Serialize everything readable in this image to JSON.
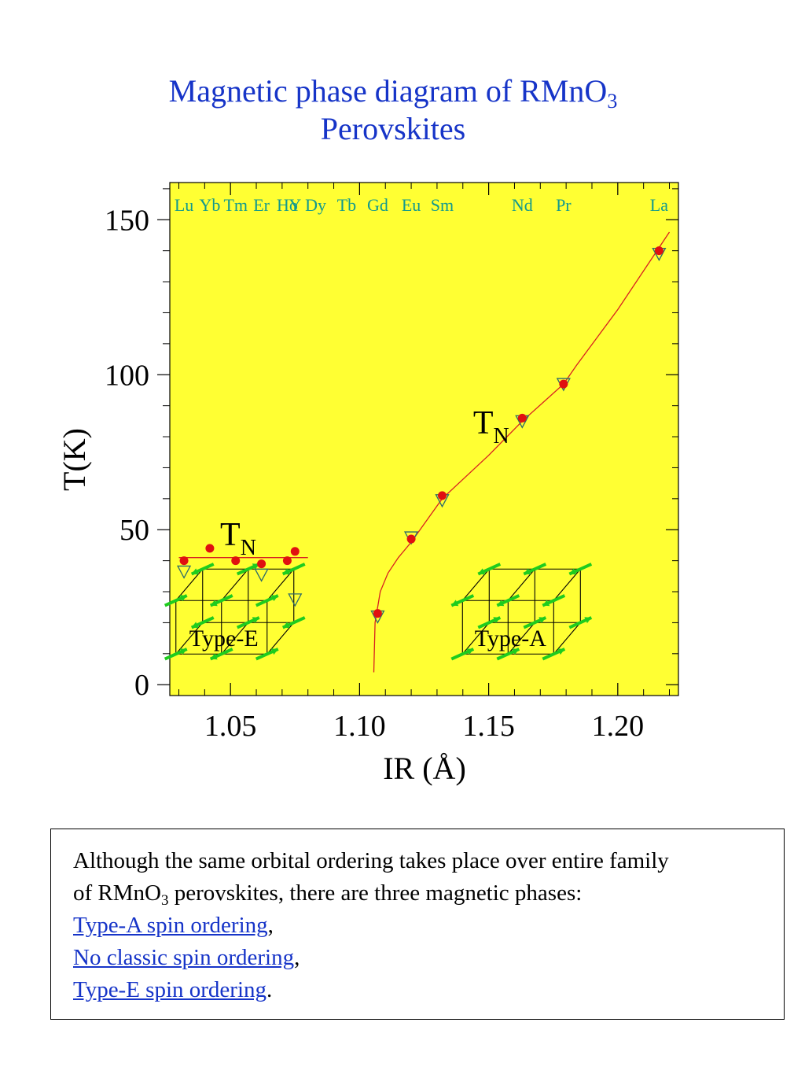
{
  "title": {
    "line1_main": "Magnetic phase diagram of RMnO",
    "line1_sub": "3",
    "line2": "Perovskites"
  },
  "colors": {
    "plot_bg": "#ffff33",
    "title": "#1634c8",
    "element_labels": "#11998e",
    "curve": "#d82020",
    "marker_fill": "#e01010",
    "triangle_stroke": "#2d6b6b",
    "spin_arrow": "#1ecc1e",
    "link": "#1634c8"
  },
  "chart_data": {
    "type": "scatter",
    "title": "Magnetic phase diagram of RMnO3 Perovskites",
    "xlabel": "IR (Å)",
    "ylabel": "T(K)",
    "xlim": [
      1.0265,
      1.2235
    ],
    "ylim": [
      -3.5,
      162
    ],
    "xticks": [
      1.05,
      1.1,
      1.15,
      1.2
    ],
    "xtick_labels": [
      "1.05",
      "1.10",
      "1.15",
      "1.20"
    ],
    "yticks": [
      0,
      50,
      100,
      150
    ],
    "ytick_labels": [
      "0",
      "50",
      "100",
      "150"
    ],
    "grid": false,
    "elements": [
      {
        "name": "Lu",
        "x": 1.032
      },
      {
        "name": "Yb",
        "x": 1.042
      },
      {
        "name": "Tm",
        "x": 1.052
      },
      {
        "name": "Er",
        "x": 1.062
      },
      {
        "name": "Ho",
        "x": 1.072
      },
      {
        "name": "Y",
        "x": 1.075
      },
      {
        "name": "Dy",
        "x": 1.083
      },
      {
        "name": "Tb",
        "x": 1.095
      },
      {
        "name": "Gd",
        "x": 1.107
      },
      {
        "name": "Eu",
        "x": 1.12
      },
      {
        "name": "Sm",
        "x": 1.132
      },
      {
        "name": "Nd",
        "x": 1.163
      },
      {
        "name": "Pr",
        "x": 1.179
      },
      {
        "name": "La",
        "x": 1.216
      }
    ],
    "series": [
      {
        "marker": "circle",
        "x": [
          1.032,
          1.042,
          1.052,
          1.062,
          1.072,
          1.075,
          1.107,
          1.12,
          1.132,
          1.163,
          1.179,
          1.216
        ],
        "y": [
          40,
          44,
          40,
          39,
          40,
          43,
          23,
          47,
          61,
          86,
          97,
          140
        ]
      },
      {
        "marker": "triangle-down",
        "x": [
          1.032,
          1.062,
          1.075,
          1.107,
          1.12,
          1.132,
          1.163,
          1.179,
          1.216
        ],
        "y": [
          36.5,
          35.5,
          27.5,
          22,
          47.5,
          59.5,
          85,
          97,
          139
        ]
      }
    ],
    "lines": [
      {
        "x": [
          1.03,
          1.08
        ],
        "y": [
          41,
          41
        ]
      },
      {
        "x": [
          1.1055,
          1.106,
          1.108,
          1.111,
          1.115,
          1.12,
          1.132,
          1.15,
          1.163,
          1.179,
          1.184,
          1.2,
          1.22
        ],
        "y": [
          4,
          20,
          30,
          36,
          41,
          46,
          60,
          74,
          85,
          97,
          103,
          121,
          146
        ]
      }
    ],
    "annotations": [
      {
        "text": "T",
        "sub": "N",
        "x": 1.144,
        "y": 81
      },
      {
        "text": "T",
        "sub": "N",
        "x": 1.046,
        "y": 45
      }
    ],
    "insets": [
      {
        "label": "Type-E",
        "x_center": 1.052,
        "y_center": 17
      },
      {
        "label": "Type-A",
        "x_center": 1.163,
        "y_center": 17
      }
    ]
  },
  "note": {
    "line1": "Although the same orbital ordering takes place over entire family",
    "line2_a": "of RMnO",
    "line2_sub": "3",
    "line2_b": " perovskites, there are three magnetic phases:",
    "link1": "Type-A spin ordering",
    "link1_after": ",",
    "link2": "No classic spin ordering",
    "link2_after": ",",
    "link3": "Type-E spin ordering",
    "link3_after": "."
  }
}
